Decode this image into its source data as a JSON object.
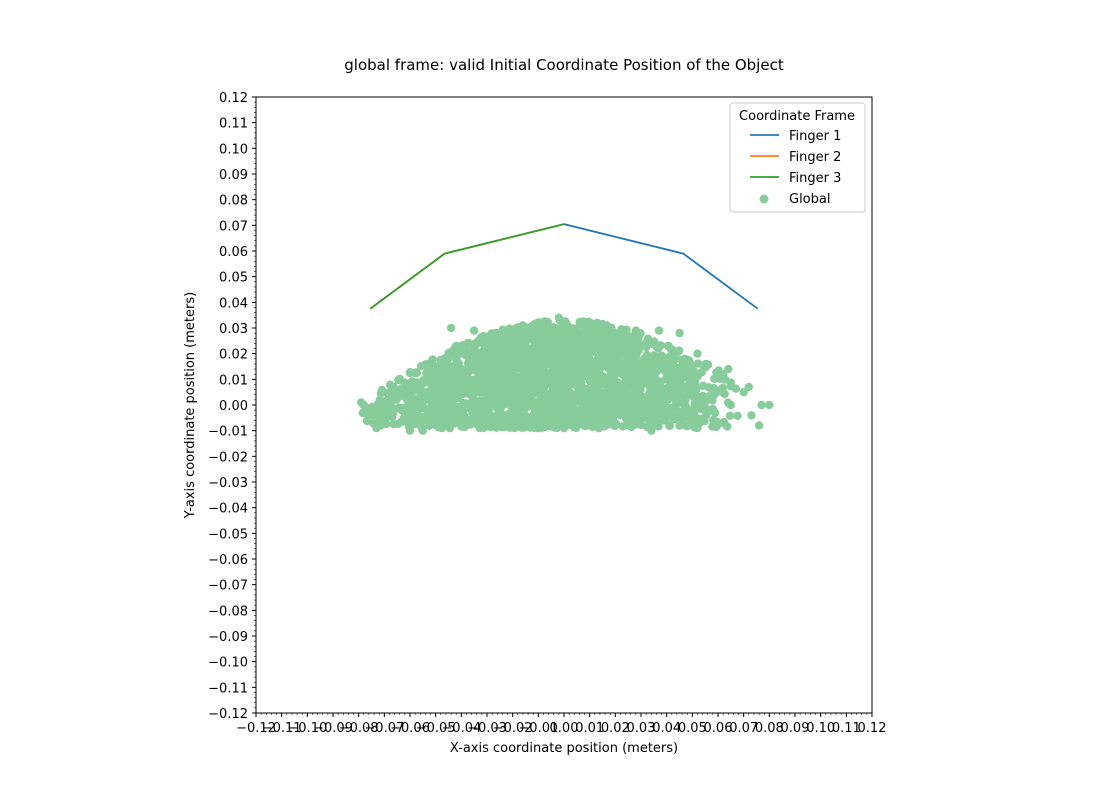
{
  "chart_data": {
    "type": "scatter",
    "title": "global frame: valid Initial Coordinate Position of the Object",
    "xlabel": "X-axis coordinate position (meters)",
    "ylabel": "Y-axis coordinate position (meters)",
    "xlim": [
      -0.12,
      0.12
    ],
    "ylim": [
      -0.12,
      0.12
    ],
    "xticks": [
      -0.12,
      -0.11,
      -0.1,
      -0.09,
      -0.08,
      -0.07,
      -0.06,
      -0.05,
      -0.04,
      -0.03,
      -0.02,
      -0.01,
      0.0,
      0.01,
      0.02,
      0.03,
      0.04,
      0.05,
      0.06,
      0.07,
      0.08,
      0.09,
      0.1,
      0.11,
      0.12
    ],
    "xtick_labels": [
      "−0.12",
      "−0.11",
      "−0.10",
      "−0.09",
      "−0.08",
      "−0.07",
      "−0.06",
      "−0.05",
      "−0.04",
      "−0.03",
      "−0.02",
      "−0.01",
      "0.00",
      "0.01",
      "0.02",
      "0.03",
      "0.04",
      "0.05",
      "0.06",
      "0.07",
      "0.08",
      "0.09",
      "0.10",
      "0.11",
      "0.12"
    ],
    "yticks": [
      0.12,
      0.11,
      0.1,
      0.09,
      0.08,
      0.07,
      0.06,
      0.05,
      0.04,
      0.03,
      0.02,
      0.01,
      0.0,
      -0.01,
      -0.02,
      -0.03,
      -0.04,
      -0.05,
      -0.06,
      -0.07,
      -0.08,
      -0.09,
      -0.1,
      -0.11,
      -0.12
    ],
    "ytick_labels": [
      "0.12",
      "0.11",
      "0.10",
      "0.09",
      "0.08",
      "0.07",
      "0.06",
      "0.05",
      "0.04",
      "0.03",
      "0.02",
      "0.01",
      "0.00",
      "−0.01",
      "−0.02",
      "−0.03",
      "−0.04",
      "−0.05",
      "−0.06",
      "−0.07",
      "−0.08",
      "−0.09",
      "−0.10",
      "−0.11",
      "−0.12"
    ],
    "grid": false,
    "legend": {
      "title": "Coordinate Frame",
      "placement": "top-right",
      "entries": [
        "Finger 1",
        "Finger 2",
        "Finger 3",
        "Global"
      ]
    },
    "lines": [
      {
        "name": "Finger 1",
        "color": "#1f77b4",
        "x": [
          0.0,
          0.0465,
          0.0755
        ],
        "y": [
          0.0705,
          0.059,
          0.0375
        ]
      },
      {
        "name": "Finger 2",
        "color": "#ff7f0e",
        "x": [
          -0.0755,
          -0.0465,
          0.0
        ],
        "y": [
          0.0375,
          0.059,
          0.0705
        ]
      },
      {
        "name": "Finger 3",
        "color": "#2ca02c",
        "x": [
          -0.0755,
          -0.0465,
          0.0
        ],
        "y": [
          0.0375,
          0.059,
          0.0705
        ]
      }
    ],
    "scatter": {
      "name": "Global",
      "color": "#88cc9c",
      "x_range": [
        -0.08,
        0.08
      ],
      "y_range": [
        -0.01,
        0.034
      ],
      "outliers": [
        [
          -0.078,
          0.0
        ],
        [
          -0.076,
          -0.004
        ],
        [
          -0.072,
          -0.006
        ],
        [
          -0.079,
          0.001
        ],
        [
          0.052,
          0.02
        ],
        [
          0.05,
          0.015
        ],
        [
          0.045,
          0.028
        ],
        [
          0.064,
          0.014
        ],
        [
          0.062,
          0.012
        ],
        [
          0.072,
          0.007
        ],
        [
          0.073,
          -0.004
        ],
        [
          0.076,
          -0.008
        ],
        [
          0.08,
          0.0
        ],
        [
          0.077,
          0.0
        ],
        [
          0.07,
          0.005
        ],
        [
          0.065,
          0.0
        ],
        [
          0.062,
          -0.007
        ],
        [
          0.052,
          0.011
        ],
        [
          0.034,
          -0.01
        ],
        [
          0.036,
          0.023
        ],
        [
          0.028,
          0.029
        ],
        [
          0.037,
          0.029
        ],
        [
          -0.002,
          0.034
        ],
        [
          0.007,
          0.032
        ],
        [
          -0.035,
          0.029
        ],
        [
          -0.044,
          0.03
        ],
        [
          -0.014,
          0.03
        ],
        [
          -0.042,
          0.023
        ],
        [
          -0.055,
          -0.01
        ],
        [
          -0.06,
          -0.01
        ],
        [
          -0.01,
          -0.009
        ],
        [
          0.0,
          -0.009
        ],
        [
          0.045,
          -0.008
        ],
        [
          0.052,
          -0.009
        ]
      ]
    }
  }
}
